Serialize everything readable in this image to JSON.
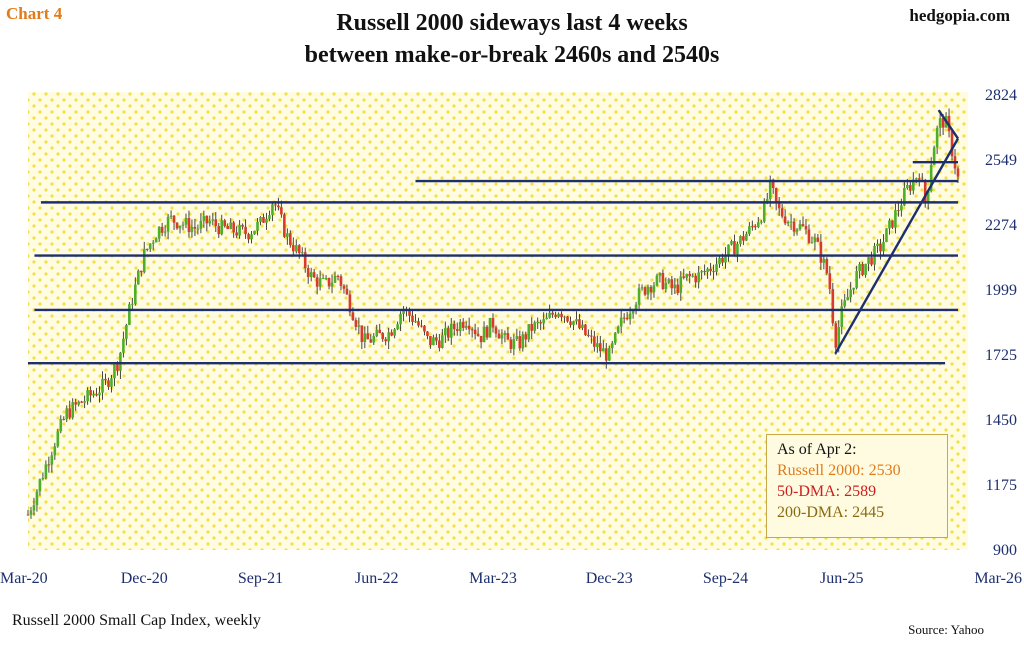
{
  "header": {
    "chart_tag": "Chart 4",
    "site": "hedgopia.com",
    "title_line1": "Russell 2000 sideways last 4 weeks",
    "title_line2": "between make-or-break 2460s and 2540s"
  },
  "footer": {
    "series_label": "Russell 2000 Small Cap Index, weekly",
    "source": "Source: Yahoo"
  },
  "legend": {
    "heading": "As of Apr 2:",
    "russell": "Russell 2000: 2530",
    "dma50": "50-DMA: 2589",
    "dma200": "200-DMA: 2445"
  },
  "colors": {
    "background": "#fffce2",
    "dots": "#f2e04a",
    "candle_up": "#4caf2a",
    "candle_down": "#d93a2b",
    "wick": "#333333",
    "lines": "#1d2f6f",
    "axis_text": "#1d2f6f"
  },
  "chart_data": {
    "type": "candlestick",
    "title": "Russell 2000 sideways last 4 weeks between make-or-break 2460s and 2540s",
    "series_name": "Russell 2000 Small Cap Index, weekly",
    "x_tick_labels": [
      "Mar-20",
      "Dec-20",
      "Sep-21",
      "Jun-22",
      "Mar-23",
      "Dec-23",
      "Sep-24",
      "Jun-25",
      "Mar-26"
    ],
    "x_range_months": [
      0,
      72
    ],
    "ylim": [
      900,
      2824
    ],
    "y_ticks": [
      900,
      1175,
      1450,
      1725,
      1999,
      2274,
      2549,
      2824
    ],
    "y_axis_side": "right",
    "grid": false,
    "background_pattern": "yellow dots",
    "horizontal_levels": [
      {
        "value": 2460,
        "from_month": 30,
        "to_month": 72
      },
      {
        "value": 2540,
        "from_month": 68.5,
        "to_month": 72
      },
      {
        "value": 2370,
        "from_month": 1,
        "to_month": 72
      },
      {
        "value": 2145,
        "from_month": 0.5,
        "to_month": 72
      },
      {
        "value": 1915,
        "from_month": 0.5,
        "to_month": 72
      },
      {
        "value": 1690,
        "from_month": 0,
        "to_month": 71
      }
    ],
    "trendlines": [
      {
        "from": [
          62.5,
          1730
        ],
        "to": [
          72,
          2640
        ],
        "label": ""
      },
      {
        "from": [
          70.5,
          2760
        ],
        "to": [
          72,
          2640
        ],
        "label": ""
      }
    ],
    "anchors": [
      [
        0,
        1050
      ],
      [
        2,
        1350
      ],
      [
        3,
        1480
      ],
      [
        5,
        1560
      ],
      [
        6,
        1600
      ],
      [
        7,
        1700
      ],
      [
        8,
        1950
      ],
      [
        9,
        2150
      ],
      [
        10,
        2250
      ],
      [
        11,
        2300
      ],
      [
        12,
        2280
      ],
      [
        13,
        2260
      ],
      [
        14,
        2290
      ],
      [
        15,
        2260
      ],
      [
        16,
        2250
      ],
      [
        17,
        2240
      ],
      [
        18,
        2280
      ],
      [
        19,
        2380
      ],
      [
        20,
        2230
      ],
      [
        21,
        2150
      ],
      [
        22,
        2050
      ],
      [
        23,
        2020
      ],
      [
        24,
        2060
      ],
      [
        25,
        1930
      ],
      [
        26,
        1780
      ],
      [
        27,
        1800
      ],
      [
        28,
        1820
      ],
      [
        29,
        1920
      ],
      [
        30,
        1870
      ],
      [
        31,
        1780
      ],
      [
        32,
        1790
      ],
      [
        33,
        1840
      ],
      [
        34,
        1880
      ],
      [
        35,
        1800
      ],
      [
        36,
        1860
      ],
      [
        37,
        1780
      ],
      [
        38,
        1770
      ],
      [
        39,
        1840
      ],
      [
        40,
        1860
      ],
      [
        41,
        1920
      ],
      [
        42,
        1880
      ],
      [
        43,
        1820
      ],
      [
        44,
        1760
      ],
      [
        45,
        1720
      ],
      [
        46,
        1870
      ],
      [
        47,
        1960
      ],
      [
        48,
        2020
      ],
      [
        49,
        2040
      ],
      [
        50,
        2000
      ],
      [
        51,
        2050
      ],
      [
        52,
        2060
      ],
      [
        53,
        2100
      ],
      [
        54,
        2150
      ],
      [
        55,
        2200
      ],
      [
        56,
        2260
      ],
      [
        57,
        2340
      ],
      [
        57.5,
        2440
      ],
      [
        58,
        2340
      ],
      [
        59,
        2290
      ],
      [
        60,
        2260
      ],
      [
        61,
        2200
      ],
      [
        62,
        2050
      ],
      [
        62.5,
        1780
      ],
      [
        63,
        1900
      ],
      [
        64,
        2050
      ],
      [
        65,
        2120
      ],
      [
        66,
        2180
      ],
      [
        67,
        2300
      ],
      [
        68,
        2420
      ],
      [
        69,
        2500
      ],
      [
        69.5,
        2360
      ],
      [
        70,
        2580
      ],
      [
        70.5,
        2700
      ],
      [
        71,
        2720
      ],
      [
        71.5,
        2600
      ],
      [
        72,
        2470
      ]
    ]
  }
}
